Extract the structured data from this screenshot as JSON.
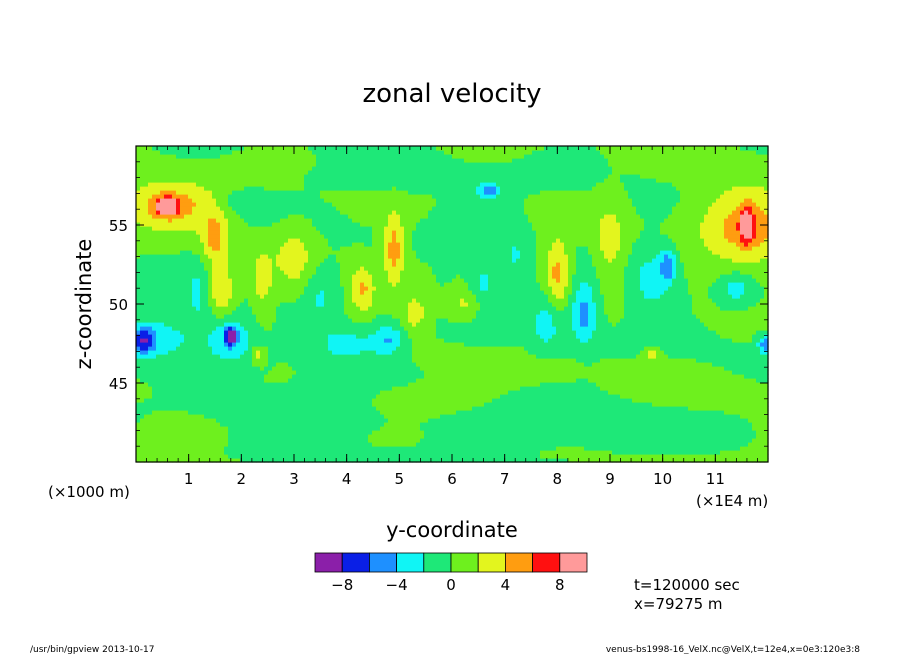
{
  "chart_data": {
    "type": "heatmap",
    "title": "zonal velocity",
    "xlabel": "y-coordinate",
    "ylabel": "z-coordinate",
    "x_unit_left": "(×1000 m)",
    "x_unit_right": "(×1E4 m)",
    "xlim": [
      0,
      12
    ],
    "ylim": [
      40,
      60
    ],
    "x_ticks": [
      1,
      2,
      3,
      4,
      5,
      6,
      7,
      8,
      9,
      10,
      11
    ],
    "x_tick_labels": [
      "1",
      "2",
      "3",
      "4",
      "5",
      "6",
      "7",
      "8",
      "9",
      "10",
      "11"
    ],
    "y_ticks": [
      45,
      50,
      55
    ],
    "y_tick_labels": [
      "45",
      "50",
      "55"
    ],
    "colorbar": {
      "levels": [
        -10,
        -8,
        -6,
        -4,
        -2,
        0,
        2,
        4,
        6,
        8,
        10
      ],
      "tick_values": [
        -8,
        -4,
        0,
        4,
        8
      ],
      "tick_labels": [
        "−8",
        "−4",
        "0",
        "4",
        "8"
      ],
      "colors": [
        "#8b1fa9",
        "#0a1fe6",
        "#1e90ff",
        "#10f5f5",
        "#1ee878",
        "#6ef01e",
        "#e3f51e",
        "#ff9d10",
        "#ff1010",
        "#ff9a9a"
      ]
    },
    "features": [
      {
        "y": 0.65,
        "z": 56.3,
        "r": 0.9,
        "rz": 1.6,
        "v": 5.0
      },
      {
        "y": 0.6,
        "z": 56.2,
        "r": 0.2,
        "rz": 0.5,
        "v": 8.5
      },
      {
        "y": 1.5,
        "z": 54.2,
        "r": 0.25,
        "rz": 1.6,
        "v": 4.5
      },
      {
        "y": 1.6,
        "z": 51.0,
        "r": 0.25,
        "rz": 1.6,
        "v": 4.5
      },
      {
        "y": 0.4,
        "z": 48.0,
        "r": 0.8,
        "rz": 1.5,
        "v": -3.0
      },
      {
        "y": 1.8,
        "z": 47.8,
        "r": 0.4,
        "rz": 1.4,
        "v": -4.0
      },
      {
        "y": 1.8,
        "z": 48.0,
        "r": 0.1,
        "rz": 0.5,
        "v": -8.5
      },
      {
        "y": 0.15,
        "z": 47.7,
        "r": 0.2,
        "rz": 0.8,
        "v": -6.0
      },
      {
        "y": 1.2,
        "z": 50.5,
        "r": 0.3,
        "rz": 2.0,
        "v": -2.5
      },
      {
        "y": 2.4,
        "z": 51.5,
        "r": 0.2,
        "rz": 2.0,
        "v": 3.0
      },
      {
        "y": 2.3,
        "z": 46.8,
        "r": 0.12,
        "rz": 0.5,
        "v": 3.0
      },
      {
        "y": 3.0,
        "z": 53.0,
        "r": 0.35,
        "rz": 2.0,
        "v": 3.0
      },
      {
        "y": 4.0,
        "z": 47.5,
        "r": 0.6,
        "rz": 1.2,
        "v": -3.0
      },
      {
        "y": 4.8,
        "z": 47.8,
        "r": 0.3,
        "rz": 1.0,
        "v": -4.0
      },
      {
        "y": 4.9,
        "z": 53.5,
        "r": 0.2,
        "rz": 2.4,
        "v": 5.0
      },
      {
        "y": 4.3,
        "z": 51.0,
        "r": 0.25,
        "rz": 1.5,
        "v": 4.5
      },
      {
        "y": 5.3,
        "z": 49.5,
        "r": 0.25,
        "rz": 1.2,
        "v": 3.2
      },
      {
        "y": 5.9,
        "z": 53.5,
        "r": 0.25,
        "rz": 2.5,
        "v": -1.0
      },
      {
        "y": 6.7,
        "z": 57.2,
        "r": 0.2,
        "rz": 0.5,
        "v": -6.0
      },
      {
        "y": 6.6,
        "z": 51.0,
        "r": 0.3,
        "rz": 2.0,
        "v": -3.0
      },
      {
        "y": 7.2,
        "z": 53.0,
        "r": 0.25,
        "rz": 2.2,
        "v": -2.0
      },
      {
        "y": 8.0,
        "z": 52.0,
        "r": 0.25,
        "rz": 2.2,
        "v": 5.0
      },
      {
        "y": 8.5,
        "z": 49.5,
        "r": 0.25,
        "rz": 2.0,
        "v": -5.0
      },
      {
        "y": 7.8,
        "z": 49.0,
        "r": 0.3,
        "rz": 2.0,
        "v": -3.2
      },
      {
        "y": 9.0,
        "z": 54.0,
        "r": 0.3,
        "rz": 2.5,
        "v": 3.0
      },
      {
        "y": 9.8,
        "z": 51.5,
        "r": 0.4,
        "rz": 2.0,
        "v": -3.0
      },
      {
        "y": 10.1,
        "z": 52.5,
        "r": 0.15,
        "rz": 1.0,
        "v": -5.0
      },
      {
        "y": 9.8,
        "z": 46.8,
        "r": 0.15,
        "rz": 0.4,
        "v": 3.0
      },
      {
        "y": 11.6,
        "z": 55.0,
        "r": 0.9,
        "rz": 2.6,
        "v": 5.0
      },
      {
        "y": 11.6,
        "z": 55.0,
        "r": 0.12,
        "rz": 1.0,
        "v": 8.5
      },
      {
        "y": 11.4,
        "z": 51.0,
        "r": 0.3,
        "rz": 1.0,
        "v": -3.0
      },
      {
        "y": 11.95,
        "z": 47.5,
        "r": 0.15,
        "rz": 0.6,
        "v": -5.0
      },
      {
        "y": 3.5,
        "z": 50.5,
        "r": 0.3,
        "rz": 2.0,
        "v": -2.0
      },
      {
        "y": 2.0,
        "z": 56.5,
        "r": 0.4,
        "rz": 0.6,
        "v": -2.2
      },
      {
        "y": 6.3,
        "z": 50.0,
        "r": 0.4,
        "rz": 1.0,
        "v": 3.0
      },
      {
        "y": 5.0,
        "z": 58.0,
        "r": 1.5,
        "rz": 0.8,
        "v": -1.2
      },
      {
        "y": 3.0,
        "z": 43.0,
        "r": 2.0,
        "rz": 1.5,
        "v": -1.2
      },
      {
        "y": 8.5,
        "z": 42.5,
        "r": 2.0,
        "rz": 1.5,
        "v": -1.2
      },
      {
        "y": 5.5,
        "z": 44.0,
        "r": 1.2,
        "rz": 1.0,
        "v": 1.2
      },
      {
        "y": 10.5,
        "z": 44.5,
        "r": 1.2,
        "rz": 1.0,
        "v": 1.2
      },
      {
        "y": 1.0,
        "z": 42.0,
        "r": 1.0,
        "rz": 1.0,
        "v": 1.1
      },
      {
        "y": 7.5,
        "z": 46.0,
        "r": 1.0,
        "rz": 0.8,
        "v": 1.1
      }
    ],
    "annotations": [
      "t=120000 sec",
      "x=79275 m"
    ]
  },
  "footer": {
    "left": "/usr/bin/gpview   2013-10-17",
    "right": "venus-bs1998-16_VelX.nc@VelX,t=12e4,x=0e3:120e3:8"
  }
}
